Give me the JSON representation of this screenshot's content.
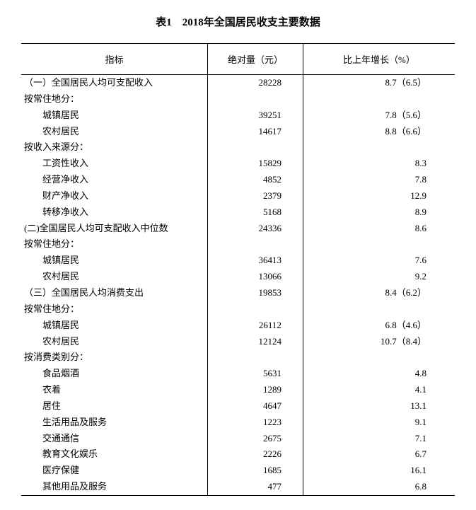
{
  "title": "表1　2018年全国居民收支主要数据",
  "columns": [
    "指标",
    "绝对量（元）",
    "比上年增长（%）"
  ],
  "col_widths_pct": [
    43,
    22,
    35
  ],
  "colors": {
    "background": "#ffffff",
    "text": "#000000",
    "border": "#000000"
  },
  "typography": {
    "title_fontsize_pt": 11,
    "body_fontsize_pt": 10,
    "font_family": "SimSun / 宋体 (serif)"
  },
  "rows": [
    {
      "indent": 0,
      "indicator": "（一）全国居民人均可支配收入",
      "value": "28228",
      "growth": "8.7（6.5）"
    },
    {
      "indent": 0,
      "indicator": "按常住地分：",
      "value": "",
      "growth": ""
    },
    {
      "indent": 2,
      "indicator": "城镇居民",
      "value": "39251",
      "growth": "7.8（5.6）"
    },
    {
      "indent": 2,
      "indicator": "农村居民",
      "value": "14617",
      "growth": "8.8（6.6）"
    },
    {
      "indent": 0,
      "indicator": "按收入来源分：",
      "value": "",
      "growth": ""
    },
    {
      "indent": 2,
      "indicator": "工资性收入",
      "value": "15829",
      "growth": "8.3"
    },
    {
      "indent": 2,
      "indicator": "经营净收入",
      "value": "4852",
      "growth": "7.8"
    },
    {
      "indent": 2,
      "indicator": "财产净收入",
      "value": "2379",
      "growth": "12.9"
    },
    {
      "indent": 2,
      "indicator": "转移净收入",
      "value": "5168",
      "growth": "8.9"
    },
    {
      "indent": 0,
      "indicator": "(二)全国居民人均可支配收入中位数",
      "value": "24336",
      "growth": "8.6"
    },
    {
      "indent": 0,
      "indicator": "按常住地分：",
      "value": "",
      "growth": ""
    },
    {
      "indent": 2,
      "indicator": "城镇居民",
      "value": "36413",
      "growth": "7.6"
    },
    {
      "indent": 2,
      "indicator": "农村居民",
      "value": "13066",
      "growth": "9.2"
    },
    {
      "indent": 0,
      "indicator": "（三）全国居民人均消费支出",
      "value": "19853",
      "growth": "8.4（6.2）"
    },
    {
      "indent": 0,
      "indicator": "按常住地分：",
      "value": "",
      "growth": ""
    },
    {
      "indent": 2,
      "indicator": "城镇居民",
      "value": "26112",
      "growth": "6.8（4.6）"
    },
    {
      "indent": 2,
      "indicator": "农村居民",
      "value": "12124",
      "growth": "10.7（8.4）"
    },
    {
      "indent": 0,
      "indicator": "按消费类别分：",
      "value": "",
      "growth": ""
    },
    {
      "indent": 2,
      "indicator": "食品烟酒",
      "value": "5631",
      "growth": "4.8"
    },
    {
      "indent": 2,
      "indicator": "衣着",
      "value": "1289",
      "growth": "4.1"
    },
    {
      "indent": 2,
      "indicator": "居住",
      "value": "4647",
      "growth": "13.1"
    },
    {
      "indent": 2,
      "indicator": "生活用品及服务",
      "value": "1223",
      "growth": "9.1"
    },
    {
      "indent": 2,
      "indicator": "交通通信",
      "value": "2675",
      "growth": "7.1"
    },
    {
      "indent": 2,
      "indicator": "教育文化娱乐",
      "value": "2226",
      "growth": "6.7"
    },
    {
      "indent": 2,
      "indicator": "医疗保健",
      "value": "1685",
      "growth": "16.1"
    },
    {
      "indent": 2,
      "indicator": "其他用品及服务",
      "value": "477",
      "growth": "6.8"
    }
  ]
}
